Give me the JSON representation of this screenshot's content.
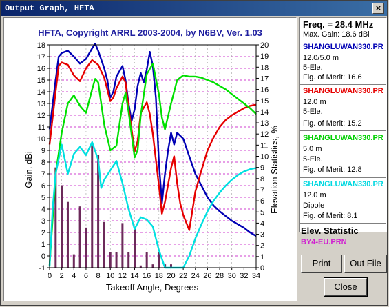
{
  "window": {
    "title": "Output Graph, HFTA",
    "close_glyph": "×"
  },
  "chart_data": {
    "type": "line",
    "title": "HFTA, Copyright ARRL 2003-2004, by N6BV, Ver. 1.03",
    "xlabel": "Takeoff Angle, Degrees",
    "ylabel": "Gain, dBi",
    "y2label": "Elevation Statistics, %",
    "xlim": [
      0,
      34
    ],
    "ylim": [
      -1,
      18
    ],
    "y2lim": [
      0,
      20
    ],
    "x_ticks": [
      0,
      2,
      4,
      6,
      8,
      10,
      12,
      14,
      16,
      18,
      20,
      22,
      24,
      26,
      28,
      30,
      32,
      34
    ],
    "y_ticks": [
      -1,
      0,
      1,
      2,
      3,
      4,
      5,
      6,
      7,
      8,
      9,
      10,
      11,
      12,
      13,
      14,
      15,
      16,
      17,
      18
    ],
    "y2_ticks": [
      0,
      1,
      2,
      3,
      4,
      5,
      6,
      7,
      8,
      9,
      10,
      11,
      12,
      13,
      14,
      15,
      16,
      17,
      18,
      19,
      20
    ],
    "grid": true,
    "series": [
      {
        "name": "SHANGLUWAN330.PR",
        "color": "#0000b4",
        "x": [
          0,
          1,
          1.5,
          2,
          3,
          4,
          5,
          6,
          7,
          7.5,
          8,
          9,
          9.5,
          10,
          10.5,
          11,
          12,
          12.5,
          13,
          13.5,
          14,
          14.5,
          15,
          15.5,
          16,
          16.5,
          17,
          17.5,
          18,
          18.5,
          19,
          19.5,
          20,
          20.5,
          21,
          22,
          23,
          24,
          25,
          26,
          27,
          28,
          29,
          30,
          31,
          32,
          33,
          34
        ],
        "y": [
          10.8,
          15,
          17,
          17.3,
          17.5,
          17,
          16.4,
          16.8,
          17.7,
          18.1,
          17.5,
          16,
          15,
          13.5,
          14,
          15.3,
          16.2,
          15,
          13,
          11.5,
          12.5,
          14.5,
          15.6,
          14.8,
          15.9,
          17.4,
          16.2,
          13.5,
          8,
          4.5,
          7,
          9,
          10.5,
          9.5,
          10.5,
          10,
          8.5,
          7,
          6,
          5,
          4.3,
          3.8,
          3.4,
          3,
          2.7,
          2.4,
          2,
          1.7
        ]
      },
      {
        "name": "SHANGLUWAN330.PR",
        "color": "#e60000",
        "x": [
          0,
          1,
          1.5,
          2,
          3,
          4,
          5,
          6,
          7,
          8,
          9,
          10,
          10.5,
          11,
          12,
          12.5,
          13,
          14,
          14.5,
          15,
          16,
          16.5,
          17,
          18,
          18.5,
          19,
          20,
          20.5,
          21,
          21.5,
          22,
          23,
          24,
          25,
          26,
          27,
          28,
          29,
          30,
          31,
          32,
          33,
          34
        ],
        "y": [
          9.5,
          14,
          16.2,
          16.5,
          16.3,
          15.4,
          14.9,
          16,
          16.7,
          16.3,
          15.2,
          13.2,
          13.5,
          14.3,
          15.3,
          14.8,
          12.7,
          8.9,
          9.8,
          12.2,
          13.1,
          12.1,
          10.4,
          6,
          3.6,
          4.6,
          7.5,
          8.5,
          6.2,
          4.5,
          3.5,
          2.2,
          5.5,
          7.3,
          9,
          10.1,
          11,
          11.6,
          12,
          12.3,
          12.6,
          12.8,
          12.9
        ]
      },
      {
        "name": "SHANGLUWAN330.PR",
        "color": "#00e000",
        "x": [
          0,
          1,
          2,
          3,
          4,
          5,
          6,
          7,
          7.5,
          8,
          9,
          10,
          11,
          12,
          12.5,
          13,
          14,
          14.5,
          15,
          16,
          17,
          18,
          18.5,
          19,
          20,
          21,
          22,
          23,
          24,
          25,
          26,
          27,
          28,
          29,
          30,
          31,
          32,
          33,
          34
        ],
        "y": [
          -0.8,
          7,
          10.5,
          13,
          13.7,
          12.8,
          12.2,
          14.2,
          15.1,
          14.8,
          11.2,
          9,
          9.4,
          13,
          13.9,
          12.3,
          8.4,
          9,
          12,
          15.5,
          16.4,
          13.8,
          11.8,
          10.8,
          13,
          15,
          15.4,
          15.3,
          15.3,
          15.2,
          15,
          14.8,
          14.5,
          14.2,
          13.8,
          13.4,
          13,
          12.6,
          12.1
        ]
      },
      {
        "name": "SHANGLUWAN330.PR",
        "color": "#00e0e0",
        "x": [
          0,
          0.5,
          1,
          2,
          3,
          4,
          5,
          6,
          7,
          8,
          8.5,
          9,
          10,
          11,
          12,
          13,
          14,
          15,
          16,
          17,
          18,
          19,
          20,
          21,
          22,
          23,
          24,
          25,
          26,
          27,
          28,
          29,
          30,
          31,
          32,
          33,
          34
        ],
        "y": [
          -0.9,
          4,
          7,
          9.5,
          7,
          8.7,
          9.3,
          8.6,
          9.7,
          8.2,
          5.8,
          6.5,
          7.3,
          8.1,
          6.2,
          4,
          2.3,
          3.3,
          3.1,
          2.5,
          0.5,
          -1,
          -1,
          -1,
          -1,
          0,
          1.5,
          2.7,
          3.8,
          4.7,
          5.4,
          6,
          6.5,
          6.9,
          7.2,
          7.4,
          7.5
        ]
      }
    ],
    "bars": {
      "name": "Elev. Statistic",
      "color": "#6c2a5a",
      "x": [
        1,
        2,
        3,
        4,
        5,
        6,
        7,
        8,
        9,
        10,
        11,
        12,
        13,
        14,
        15,
        16,
        17,
        18,
        19,
        20
      ],
      "values": [
        9,
        7.4,
        5.9,
        1.2,
        5.5,
        3.6,
        11,
        10.1,
        4.1,
        1.4,
        1.4,
        4,
        1.4,
        3.6,
        0.2,
        1.4,
        0.3,
        1.4,
        0.3,
        0.3
      ]
    }
  },
  "sidebar": {
    "freq": "Freq. = 28.4 MHz",
    "max_gain": "Max. Gain: 18.6 dBi",
    "entries": [
      {
        "name": "SHANGLUWAN330.PR",
        "color": "#0000b4",
        "line1": "12.0/5.0 m",
        "line2": "5-Ele.",
        "merit": "Fig. of Merit:  16.6"
      },
      {
        "name": "SHANGLUWAN330.PR",
        "color": "#e60000",
        "line1": "12.0 m",
        "line2": "5-Ele.",
        "merit": "Fig. of Merit:  15.2"
      },
      {
        "name": "SHANGLUWAN330.PR",
        "color": "#00d000",
        "line1": "5.0 m",
        "line2": "5-Ele.",
        "merit": "Fig. of Merit:  12.8"
      },
      {
        "name": "SHANGLUWAN330.PR",
        "color": "#00d8e0",
        "line1": "12.0 m",
        "line2": "Dipole",
        "merit": "Fig. of Merit:  8.1"
      }
    ],
    "elev_heading": "Elev. Statistic",
    "elev_file": "BY4-EU.PRN",
    "elev_file_color": "#d020d0"
  },
  "buttons": {
    "print": "Print",
    "outfile": "Out File",
    "close": "Close"
  }
}
